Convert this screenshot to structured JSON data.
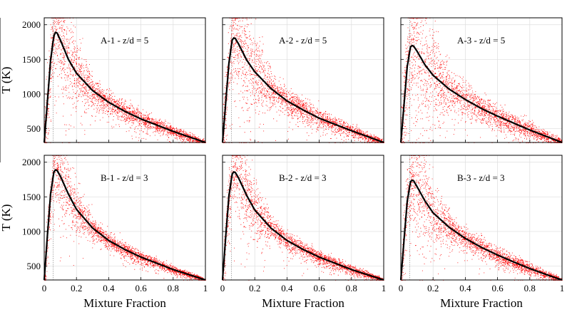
{
  "figure": {
    "shared_x_label": "Mixture Fraction",
    "shared_y_label": "T (K)",
    "colors": {
      "scatter": "#ff0000",
      "mean_line": "#000000",
      "grid": "#dddddd",
      "stoich_line": "#999999"
    }
  },
  "chart_data": [
    {
      "type": "scatter",
      "title": "A-1 - z/d = 5",
      "xlabel": "",
      "ylabel": "T (K)",
      "xlim": [
        0,
        1
      ],
      "ylim": [
        300,
        2100
      ],
      "xticks": [
        "",
        "",
        "",
        "",
        "",
        ""
      ],
      "yticks": [
        "500",
        "1000",
        "1500",
        "2000"
      ],
      "grid": true,
      "stoichiometric_mixture_fraction": 0.055,
      "mean_curve": {
        "x": [
          0,
          0.02,
          0.04,
          0.06,
          0.07,
          0.08,
          0.1,
          0.15,
          0.2,
          0.3,
          0.4,
          0.5,
          0.6,
          0.7,
          0.8,
          0.9,
          1.0
        ],
        "y": [
          300,
          900,
          1500,
          1840,
          1890,
          1880,
          1780,
          1500,
          1300,
          1050,
          880,
          750,
          640,
          550,
          460,
          380,
          300
        ]
      }
    },
    {
      "type": "scatter",
      "title": "A-2 - z/d = 5",
      "xlabel": "",
      "ylabel": "",
      "xlim": [
        0,
        1
      ],
      "ylim": [
        300,
        2100
      ],
      "xticks": [
        "",
        "",
        "",
        "",
        "",
        ""
      ],
      "yticks": [
        "",
        "",
        "",
        ""
      ],
      "grid": true,
      "stoichiometric_mixture_fraction": 0.055,
      "mean_curve": {
        "x": [
          0,
          0.02,
          0.04,
          0.06,
          0.07,
          0.08,
          0.1,
          0.15,
          0.2,
          0.3,
          0.4,
          0.5,
          0.6,
          0.7,
          0.8,
          0.9,
          1.0
        ],
        "y": [
          300,
          880,
          1450,
          1780,
          1810,
          1800,
          1720,
          1490,
          1320,
          1080,
          900,
          770,
          650,
          560,
          470,
          385,
          300
        ]
      }
    },
    {
      "type": "scatter",
      "title": "A-3 - z/d = 5",
      "xlabel": "",
      "ylabel": "",
      "xlim": [
        0,
        1
      ],
      "ylim": [
        300,
        2100
      ],
      "xticks": [
        "",
        "",
        "",
        "",
        "",
        ""
      ],
      "yticks": [
        "",
        "",
        "",
        ""
      ],
      "grid": true,
      "stoichiometric_mixture_fraction": 0.055,
      "mean_curve": {
        "x": [
          0,
          0.02,
          0.04,
          0.06,
          0.07,
          0.08,
          0.1,
          0.15,
          0.2,
          0.3,
          0.4,
          0.5,
          0.6,
          0.7,
          0.8,
          0.9,
          1.0
        ],
        "y": [
          300,
          850,
          1400,
          1680,
          1700,
          1690,
          1620,
          1420,
          1270,
          1070,
          920,
          790,
          680,
          580,
          480,
          390,
          300
        ]
      }
    },
    {
      "type": "scatter",
      "title": "B-1 - z/d = 3",
      "xlabel": "Mixture Fraction",
      "ylabel": "T (K)",
      "xlim": [
        0,
        1
      ],
      "ylim": [
        300,
        2100
      ],
      "xticks": [
        "0",
        "0.2",
        "0.4",
        "0.6",
        "0.8",
        "1"
      ],
      "yticks": [
        "500",
        "1000",
        "1500",
        "2000"
      ],
      "grid": true,
      "stoichiometric_mixture_fraction": 0.055,
      "mean_curve": {
        "x": [
          0,
          0.02,
          0.04,
          0.06,
          0.07,
          0.08,
          0.1,
          0.15,
          0.2,
          0.3,
          0.4,
          0.5,
          0.6,
          0.7,
          0.8,
          0.9,
          1.0
        ],
        "y": [
          300,
          950,
          1550,
          1860,
          1890,
          1880,
          1800,
          1540,
          1320,
          1050,
          870,
          740,
          630,
          540,
          450,
          375,
          300
        ]
      }
    },
    {
      "type": "scatter",
      "title": "B-2 - z/d = 3",
      "xlabel": "Mixture Fraction",
      "ylabel": "",
      "xlim": [
        0,
        1
      ],
      "ylim": [
        300,
        2100
      ],
      "xticks": [
        "0",
        "0.2",
        "0.4",
        "0.6",
        "0.8",
        "1"
      ],
      "yticks": [
        "",
        "",
        "",
        ""
      ],
      "grid": true,
      "stoichiometric_mixture_fraction": 0.055,
      "mean_curve": {
        "x": [
          0,
          0.02,
          0.04,
          0.06,
          0.07,
          0.08,
          0.1,
          0.15,
          0.2,
          0.3,
          0.4,
          0.5,
          0.6,
          0.7,
          0.8,
          0.9,
          1.0
        ],
        "y": [
          300,
          930,
          1520,
          1830,
          1860,
          1850,
          1770,
          1520,
          1310,
          1050,
          870,
          740,
          630,
          540,
          450,
          375,
          300
        ]
      }
    },
    {
      "type": "scatter",
      "title": "B-3 - z/d = 3",
      "xlabel": "Mixture Fraction",
      "ylabel": "",
      "xlim": [
        0,
        1
      ],
      "ylim": [
        300,
        2100
      ],
      "xticks": [
        "0",
        "0.2",
        "0.4",
        "0.6",
        "0.8",
        "1"
      ],
      "yticks": [
        "",
        "",
        "",
        ""
      ],
      "grid": true,
      "stoichiometric_mixture_fraction": 0.055,
      "mean_curve": {
        "x": [
          0,
          0.02,
          0.04,
          0.06,
          0.07,
          0.08,
          0.1,
          0.15,
          0.2,
          0.3,
          0.4,
          0.5,
          0.6,
          0.7,
          0.8,
          0.9,
          1.0
        ],
        "y": [
          300,
          880,
          1440,
          1720,
          1740,
          1730,
          1650,
          1440,
          1270,
          1060,
          900,
          770,
          660,
          560,
          465,
          380,
          300
        ]
      }
    }
  ]
}
